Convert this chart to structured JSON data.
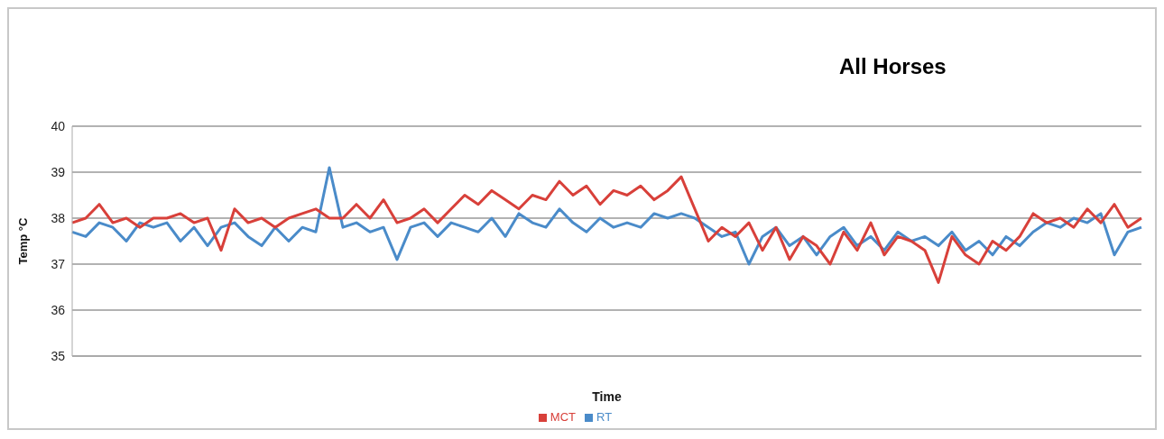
{
  "chart_data": {
    "type": "line",
    "title": "All Horses",
    "xlabel": "Time",
    "ylabel": "Temp °C",
    "categories": [
      null,
      null,
      null,
      null,
      null,
      null,
      null,
      null,
      null,
      null,
      null,
      null,
      null,
      null,
      null,
      null,
      null,
      null,
      null,
      null,
      null,
      null,
      null,
      null,
      null,
      null,
      null,
      null,
      null,
      null,
      null,
      null,
      null,
      null,
      null,
      null,
      null,
      null,
      null,
      null,
      null,
      null,
      null,
      null,
      null,
      null,
      null,
      null,
      null,
      null,
      null,
      null,
      null,
      null,
      null,
      null,
      null,
      null,
      null,
      null,
      null,
      null,
      null,
      null,
      null,
      null,
      null,
      null,
      null,
      null,
      null,
      null,
      null,
      null,
      null,
      null,
      null,
      null,
      null,
      null
    ],
    "series": [
      {
        "name": "RT",
        "color": "#4a8bc9",
        "values": [
          37.7,
          37.6,
          37.9,
          37.8,
          37.5,
          37.9,
          37.8,
          37.9,
          37.5,
          37.8,
          37.4,
          37.8,
          37.9,
          37.6,
          37.4,
          37.8,
          37.5,
          37.8,
          37.7,
          39.1,
          37.8,
          37.9,
          37.7,
          37.8,
          37.1,
          37.8,
          37.9,
          37.6,
          37.9,
          37.8,
          37.7,
          38.0,
          37.6,
          38.1,
          37.9,
          37.8,
          38.2,
          37.9,
          37.7,
          38.0,
          37.8,
          37.9,
          37.8,
          38.1,
          38.0,
          38.1,
          38.0,
          37.8,
          37.6,
          37.7,
          37.0,
          37.6,
          37.8,
          37.4,
          37.6,
          37.2,
          37.6,
          37.8,
          37.4,
          37.6,
          37.3,
          37.7,
          37.5,
          37.6,
          37.4,
          37.7,
          37.3,
          37.5,
          37.2,
          37.6,
          37.4,
          37.7,
          37.9,
          37.8,
          38.0,
          37.9,
          38.1,
          37.2,
          37.7,
          37.8
        ]
      },
      {
        "name": "MCT",
        "color": "#d8403a",
        "values": [
          37.9,
          38.0,
          38.3,
          37.9,
          38.0,
          37.8,
          38.0,
          38.0,
          38.1,
          37.9,
          38.0,
          37.3,
          38.2,
          37.9,
          38.0,
          37.8,
          38.0,
          38.1,
          38.2,
          38.0,
          38.0,
          38.3,
          38.0,
          38.4,
          37.9,
          38.0,
          38.2,
          37.9,
          38.2,
          38.5,
          38.3,
          38.6,
          38.4,
          38.2,
          38.5,
          38.4,
          38.8,
          38.5,
          38.7,
          38.3,
          38.6,
          38.5,
          38.7,
          38.4,
          38.6,
          38.9,
          38.2,
          37.5,
          37.8,
          37.6,
          37.9,
          37.3,
          37.8,
          37.1,
          37.6,
          37.4,
          37.0,
          37.7,
          37.3,
          37.9,
          37.2,
          37.6,
          37.5,
          37.3,
          36.6,
          37.6,
          37.2,
          37.0,
          37.5,
          37.3,
          37.6,
          38.1,
          37.9,
          38.0,
          37.8,
          38.2,
          37.9,
          38.3,
          37.8,
          38.0
        ]
      }
    ],
    "ylim": [
      35,
      40
    ],
    "yticks": [
      35,
      36,
      37,
      38,
      39,
      40
    ],
    "grid": "y",
    "legend": "bottom",
    "marker": "none",
    "line_style": "solid"
  }
}
